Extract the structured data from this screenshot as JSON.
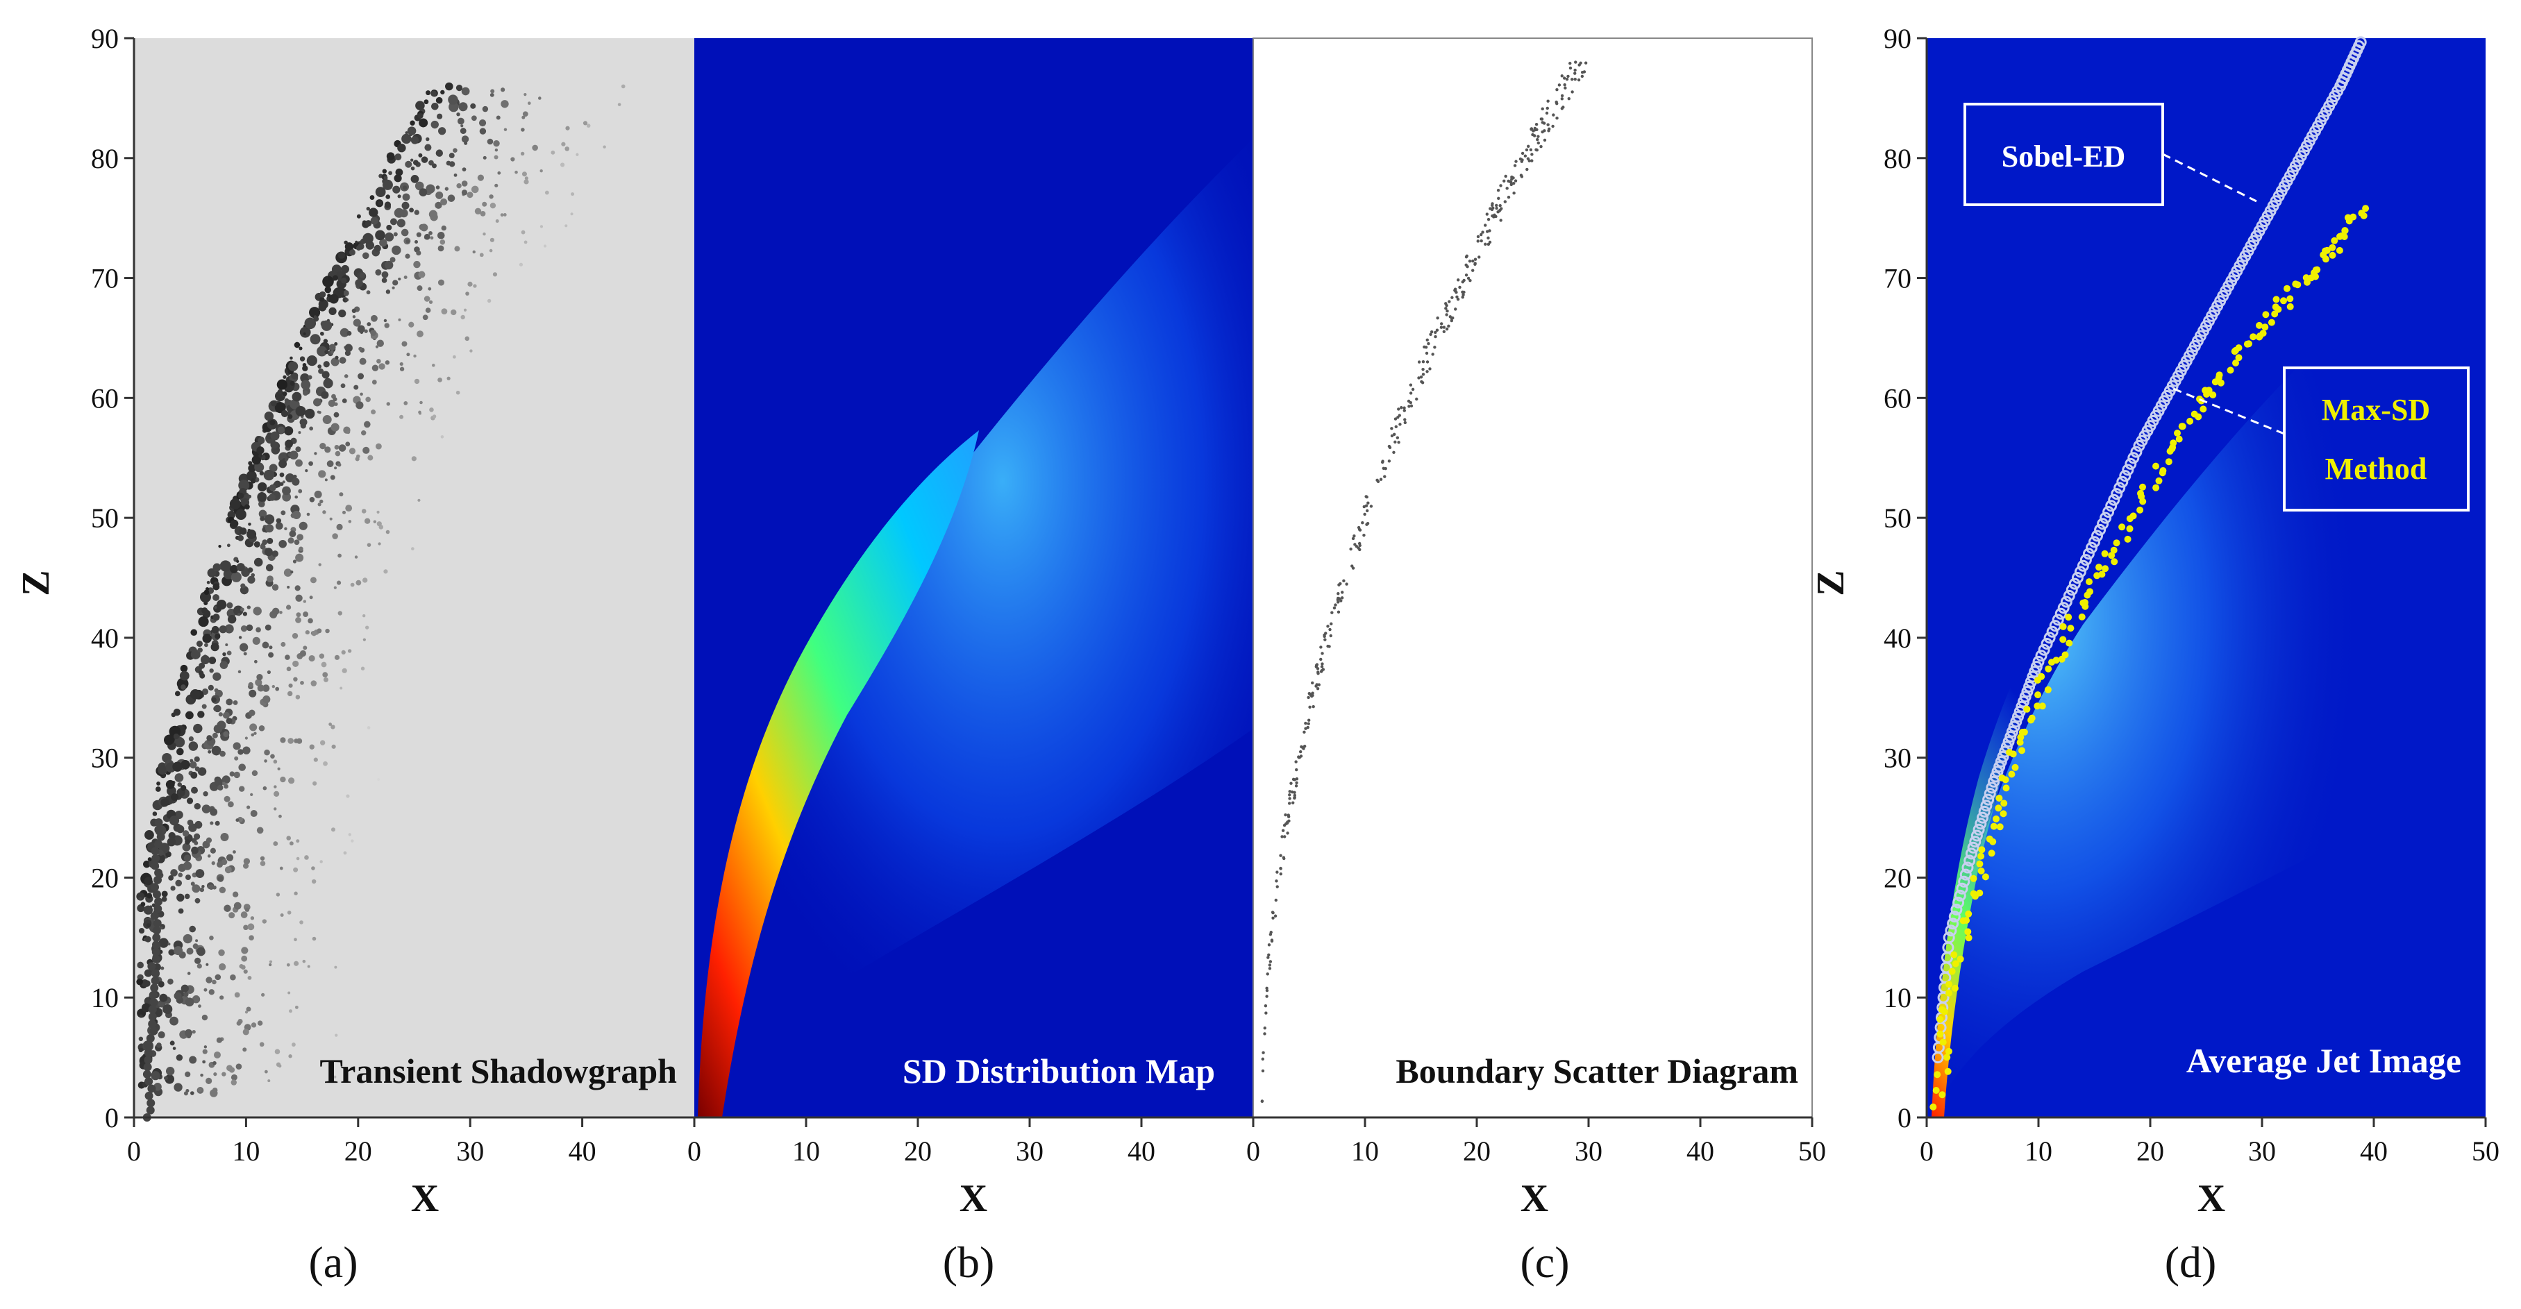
{
  "chart_data": [
    {
      "type": "scatter",
      "panel": "(a)",
      "label": "Transient Shadowgraph",
      "xlabel": "X",
      "ylabel": "Z",
      "xlim": [
        0,
        50
      ],
      "ylim": [
        0,
        90
      ],
      "xticks": [
        0,
        10,
        20,
        30,
        40
      ],
      "yticks": [
        0,
        10,
        20,
        30,
        40,
        50,
        60,
        70,
        80,
        90
      ]
    },
    {
      "type": "heatmap",
      "panel": "(b)",
      "label": "SD  Distribution Map",
      "xlabel": "X",
      "xlim": [
        0,
        50
      ],
      "ylim": [
        0,
        90
      ],
      "xticks": [
        0,
        10,
        20,
        30,
        40
      ]
    },
    {
      "type": "scatter",
      "panel": "(c)",
      "label": "Boundary  Scatter  Diagram",
      "xlabel": "X",
      "xlim": [
        0,
        50
      ],
      "ylim": [
        0,
        90
      ],
      "xticks": [
        0,
        10,
        20,
        30,
        40,
        50
      ]
    },
    {
      "type": "scatter",
      "panel": "(d)",
      "label": "Average Jet Image",
      "xlabel": "X",
      "ylabel": "Z",
      "xlim": [
        0,
        50
      ],
      "ylim": [
        0,
        90
      ],
      "xticks": [
        0,
        10,
        20,
        30,
        40,
        50
      ],
      "yticks": [
        0,
        10,
        20,
        30,
        40,
        50,
        60,
        70,
        80,
        90
      ],
      "series": [
        {
          "name": "Sobel-ED",
          "color": "#c8d0f0",
          "x": [
            1,
            2,
            4,
            6,
            8,
            10,
            13,
            16,
            19,
            22,
            25,
            28,
            31,
            34,
            37,
            39
          ],
          "y": [
            5,
            15,
            22,
            28,
            33,
            38,
            44,
            50,
            56,
            61,
            66,
            71,
            76,
            81,
            86,
            90
          ]
        },
        {
          "name": "Max-SD\nMethod",
          "color": "#f0f000",
          "x": [
            1,
            2,
            4,
            6,
            8,
            10,
            13,
            16,
            19,
            22,
            25,
            28,
            31,
            34,
            37,
            39
          ],
          "y": [
            1,
            10,
            18,
            24,
            30,
            35,
            41,
            46,
            51,
            56,
            60,
            64,
            67,
            70,
            73,
            76
          ]
        }
      ]
    }
  ],
  "annotations": {
    "sobel": "Sobel-ED",
    "maxsd_line1": "Max-SD",
    "maxsd_line2": "Method"
  },
  "panel_labels": [
    "(a)",
    "(b)",
    "(c)",
    "(d)"
  ],
  "colors": {
    "jet_blue": "#0010b8",
    "panel_a_bg": "#dcdcdc"
  }
}
